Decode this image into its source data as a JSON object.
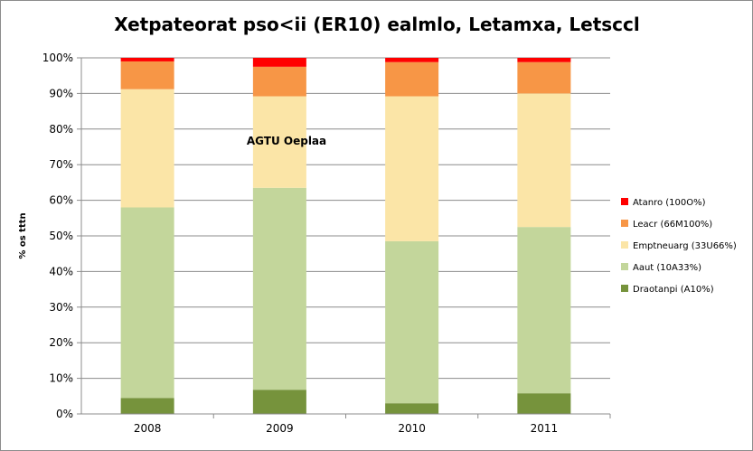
{
  "chart_data": {
    "type": "bar",
    "stacked": true,
    "title": "Xetpateorat pso<ii (ER10) ealmlo, Letamxa, Letsccl",
    "ylabel": "% os tttn",
    "xlabel": "",
    "ylim": [
      0,
      100
    ],
    "yticks": [
      "0%",
      "10%",
      "20%",
      "30%",
      "40%",
      "50%",
      "60%",
      "70%",
      "80%",
      "90%",
      "100%"
    ],
    "categories": [
      "2008",
      "2009",
      "2010",
      "2011"
    ],
    "grid": true,
    "legend_position": "right",
    "series": [
      {
        "name": "Draotanpi (A10%)",
        "color": "#76933c",
        "values": [
          4.5,
          6.8,
          3.0,
          5.8
        ]
      },
      {
        "name": "Aaut (10A33%)",
        "color": "#c3d69b",
        "values": [
          53.5,
          56.7,
          45.5,
          46.7
        ]
      },
      {
        "name": "Emptneuarg (33U66%)",
        "color": "#fbe5a7",
        "values": [
          33.2,
          25.7,
          40.7,
          37.5
        ]
      },
      {
        "name": "Leacr (66M100%)",
        "color": "#f79646",
        "values": [
          7.8,
          8.3,
          9.6,
          8.8
        ]
      },
      {
        "name": "Atanro (100O%)",
        "color": "#ff0000",
        "values": [
          1.0,
          2.5,
          1.2,
          1.2
        ]
      }
    ],
    "annotation": "AGTU Oeplaa"
  }
}
